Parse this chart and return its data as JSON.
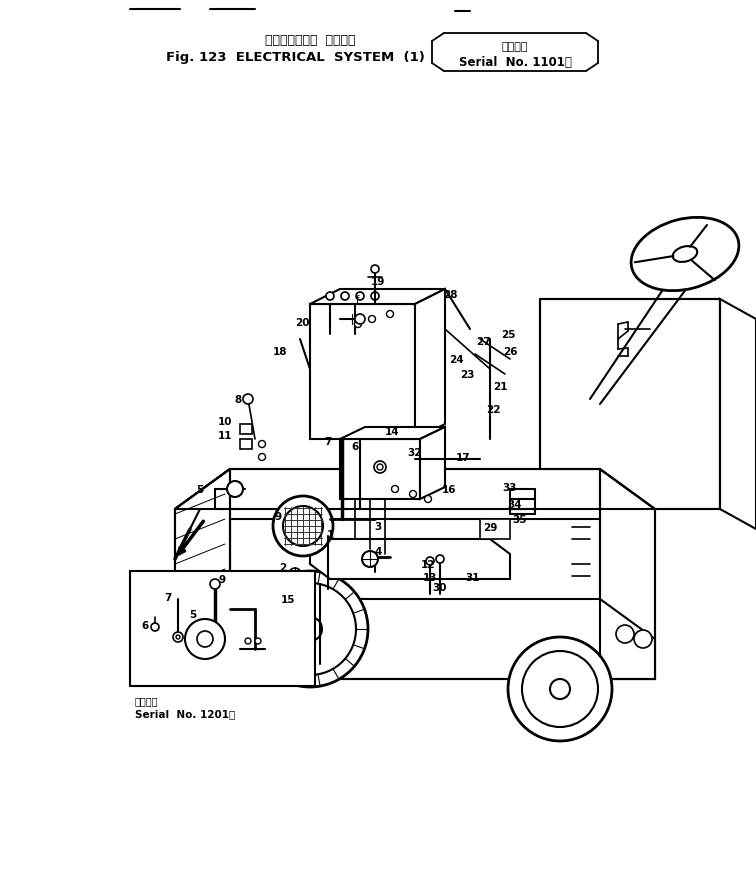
{
  "title_japanese": "エレクトリカル  システム",
  "title_english": "Fig. 123  ELECTRICAL  SYSTEM  (1)",
  "serial_japanese": "適用号表",
  "serial_english": "Serial  No. 1101～",
  "serial2_japanese": "適用号表",
  "serial2_english": "Serial  No. 1201～",
  "bg_color": "#ffffff",
  "line_color": "#000000",
  "fig_width": 7.56,
  "fig_height": 8.78,
  "dpi": 100
}
